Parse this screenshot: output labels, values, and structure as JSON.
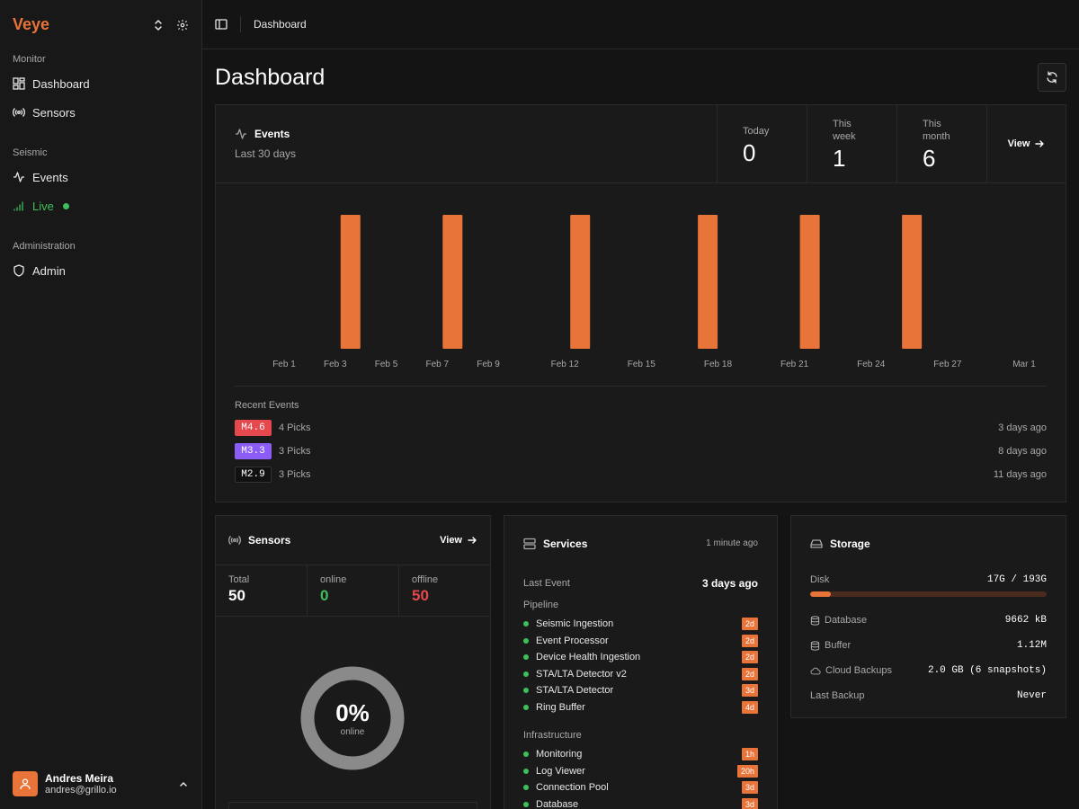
{
  "app": {
    "brand": "Veye"
  },
  "sidebar": {
    "sections": [
      {
        "label": "Monitor",
        "items": [
          {
            "label": "Dashboard",
            "icon": "grid-icon"
          },
          {
            "label": "Sensors",
            "icon": "broadcast-icon"
          }
        ]
      },
      {
        "label": "Seismic",
        "items": [
          {
            "label": "Events",
            "icon": "activity-icon"
          },
          {
            "label": "Live",
            "icon": "signal-icon"
          }
        ]
      },
      {
        "label": "Administration",
        "items": [
          {
            "label": "Admin",
            "icon": "shield-icon"
          }
        ]
      }
    ],
    "user": {
      "name": "Andres Meira",
      "email": "andres@grillo.io"
    }
  },
  "topbar": {
    "breadcrumb": "Dashboard"
  },
  "page": {
    "title": "Dashboard"
  },
  "events": {
    "title": "Events",
    "subtitle": "Last 30 days",
    "stats": [
      {
        "label": "Today",
        "value": "0"
      },
      {
        "label": "This week",
        "value": "1"
      },
      {
        "label": "This month",
        "value": "6"
      }
    ],
    "view_label": "View",
    "recent_label": "Recent Events",
    "recent": [
      {
        "mag": "M4.6",
        "picks": "4 Picks",
        "ago": "3 days ago",
        "color": "#e5484d"
      },
      {
        "mag": "M3.3",
        "picks": "3 Picks",
        "ago": "8 days ago",
        "color": "#8b5cf6"
      },
      {
        "mag": "M2.9",
        "picks": "3 Picks",
        "ago": "11 days ago",
        "color": "#111111"
      }
    ]
  },
  "chart_data": {
    "type": "bar",
    "title": "Events",
    "x_ticks": [
      "Feb 1",
      "Feb 3",
      "Feb 5",
      "Feb 7",
      "Feb 9",
      "Feb 12",
      "Feb 15",
      "Feb 18",
      "Feb 21",
      "Feb 24",
      "Feb 27",
      "Mar 1"
    ],
    "x_tick_days": [
      1,
      3,
      5,
      7,
      9,
      12,
      15,
      18,
      21,
      24,
      27,
      30
    ],
    "x_range": [
      1,
      30
    ],
    "bars": [
      {
        "day": 3.6,
        "value": 1
      },
      {
        "day": 7.6,
        "value": 1
      },
      {
        "day": 12.6,
        "value": 1
      },
      {
        "day": 17.6,
        "value": 1
      },
      {
        "day": 21.6,
        "value": 1
      },
      {
        "day": 25.6,
        "value": 1
      }
    ],
    "ylim": [
      0,
      1
    ],
    "color": "#e8743a"
  },
  "sensors": {
    "title": "Sensors",
    "view_label": "View",
    "stats": [
      {
        "label": "Total",
        "value": "50",
        "color": "#ffffff"
      },
      {
        "label": "online",
        "value": "0",
        "color": "#3fbf5a"
      },
      {
        "label": "offline",
        "value": "50",
        "color": "#e5484d"
      }
    ],
    "online_pct": "0%",
    "online_label": "online",
    "online_fraction": 0
  },
  "services": {
    "title": "Services",
    "updated": "1 minute ago",
    "last_event_label": "Last Event",
    "last_event_value": "3 days ago",
    "groups": [
      {
        "label": "Pipeline",
        "items": [
          {
            "name": "Seismic Ingestion",
            "badge": "2d"
          },
          {
            "name": "Event Processor",
            "badge": "2d"
          },
          {
            "name": "Device Health Ingestion",
            "badge": "2d"
          },
          {
            "name": "STA/LTA Detector v2",
            "badge": "2d"
          },
          {
            "name": "STA/LTA Detector",
            "badge": "3d"
          },
          {
            "name": "Ring Buffer",
            "badge": "4d"
          }
        ]
      },
      {
        "label": "Infrastructure",
        "items": [
          {
            "name": "Monitoring",
            "badge": "1h"
          },
          {
            "name": "Log Viewer",
            "badge": "20h"
          },
          {
            "name": "Connection Pool",
            "badge": "3d"
          },
          {
            "name": "Database",
            "badge": "3d"
          }
        ]
      }
    ]
  },
  "storage": {
    "title": "Storage",
    "disk_label": "Disk",
    "disk_value": "17G / 193G",
    "disk_fraction": 0.088,
    "rows": [
      {
        "label": "Database",
        "value": "9662 kB",
        "icon": "database-icon"
      },
      {
        "label": "Buffer",
        "value": "1.12M",
        "icon": "database-icon"
      },
      {
        "label": "Cloud Backups",
        "value": "2.0 GB (6 snapshots)",
        "icon": "cloud-icon"
      },
      {
        "label": "Last Backup",
        "value": "Never",
        "icon": ""
      }
    ]
  }
}
